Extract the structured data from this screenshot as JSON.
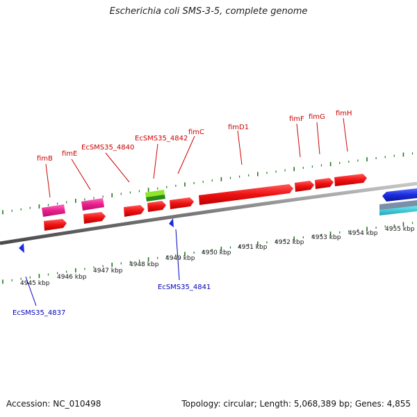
{
  "title": "Escherichia coli SMS-3-5, complete genome",
  "footer": {
    "accession": "Accession: NC_010498",
    "summary": "Topology: circular; Length: 5,068,389 bp; Genes: 4,855"
  },
  "colors": {
    "forward_red": "#ee1111",
    "pink": "#e8208c",
    "green": "#66cc22",
    "blue_gene": "#1a2cdd",
    "cyan": "#22c4d6",
    "tick_green": "#1a7a1a",
    "label_red": "#cc0000",
    "label_blue": "#0000bb",
    "backbone": "#888888"
  },
  "axis": {
    "tick_labels": [
      "4945 kbp",
      "4946 kbp",
      "4947 kbp",
      "4948 kbp",
      "4949 kbp",
      "4950 kbp",
      "4951 kbp",
      "4952 kbp",
      "4953 kbp",
      "4954 kbp",
      "4955 kbp"
    ],
    "kbp_start": 4945,
    "kbp_step": 1
  },
  "genes_top_labels": [
    {
      "name": "fimB",
      "kbp": 4945.3
    },
    {
      "name": "fimE",
      "kbp": 4946.4
    },
    {
      "name": "EcSMS35_4840",
      "kbp": 4947.4
    },
    {
      "name": "EcSMS35_4842",
      "kbp": 4948.1
    },
    {
      "name": "fimC",
      "kbp": 4948.8
    },
    {
      "name": "fimD1",
      "kbp": 4950.7
    },
    {
      "name": "fimF",
      "kbp": 4952.4
    },
    {
      "name": "fimG",
      "kbp": 4952.9
    },
    {
      "name": "fimH",
      "kbp": 4953.6
    }
  ],
  "genes_bottom_labels": [
    {
      "name": "EcSMS35_4841",
      "kbp": 4948.8
    },
    {
      "name": "EcSMS35_4837",
      "kbp": 4944.7
    }
  ]
}
